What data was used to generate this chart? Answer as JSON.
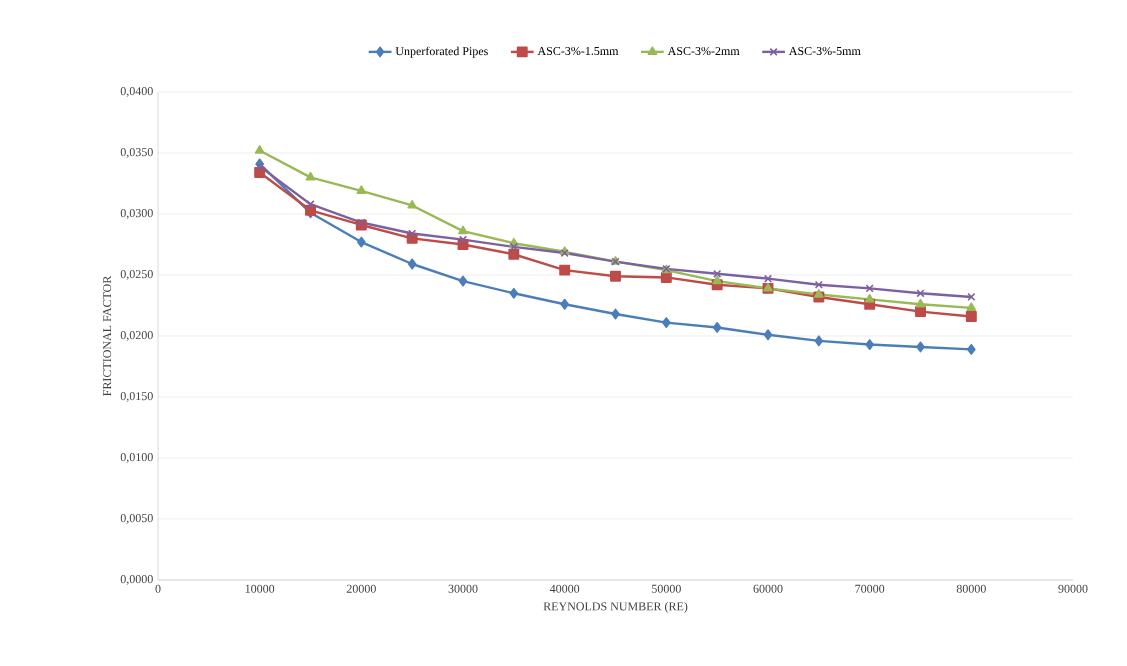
{
  "chart_data": {
    "type": "line",
    "xlabel": "REYNOLDS NUMBER (RE)",
    "ylabel": "FRICTIONAL FACTOR",
    "x": [
      10000,
      15000,
      20000,
      25000,
      30000,
      35000,
      40000,
      45000,
      50000,
      55000,
      60000,
      65000,
      70000,
      75000,
      80000
    ],
    "series": [
      {
        "name": "Unperforated Pipes",
        "color": "#4a7ebb",
        "marker": "diamond",
        "values": [
          0.0341,
          0.0301,
          0.0277,
          0.0259,
          0.0245,
          0.0235,
          0.0226,
          0.0218,
          0.0211,
          0.0207,
          0.0201,
          0.0196,
          0.0193,
          0.0191,
          0.0189
        ]
      },
      {
        "name": "ASC-3%-1.5mm",
        "color": "#be4b48",
        "marker": "square",
        "values": [
          0.0334,
          0.0303,
          0.0291,
          0.028,
          0.0275,
          0.0267,
          0.0254,
          0.0249,
          0.0248,
          0.0242,
          0.0239,
          0.0232,
          0.0226,
          0.022,
          0.0216
        ]
      },
      {
        "name": "ASC-3%-2mm",
        "color": "#98b954",
        "marker": "triangle",
        "values": [
          0.0352,
          0.033,
          0.0319,
          0.0307,
          0.0286,
          0.0276,
          0.0269,
          0.0261,
          0.0254,
          0.0245,
          0.0239,
          0.0234,
          0.023,
          0.0226,
          0.0223
        ]
      },
      {
        "name": "ASC-3%-5mm",
        "color": "#7d60a0",
        "marker": "cross",
        "values": [
          0.0339,
          0.0308,
          0.0293,
          0.0284,
          0.0279,
          0.0273,
          0.0268,
          0.0261,
          0.0255,
          0.0251,
          0.0247,
          0.0242,
          0.0239,
          0.0235,
          0.0232
        ]
      }
    ],
    "xlim": [
      0,
      90000
    ],
    "xticks": [
      0,
      10000,
      20000,
      30000,
      40000,
      50000,
      60000,
      70000,
      80000,
      90000
    ],
    "ylim": [
      0,
      0.04
    ],
    "yticks": [
      {
        "value": 0,
        "label": "0,0000"
      },
      {
        "value": 0.005,
        "label": "0,0050"
      },
      {
        "value": 0.01,
        "label": "0,0100"
      },
      {
        "value": 0.015,
        "label": "0,0150"
      },
      {
        "value": 0.02,
        "label": "0,0200"
      },
      {
        "value": 0.025,
        "label": "0,0250"
      },
      {
        "value": 0.03,
        "label": "0,0300"
      },
      {
        "value": 0.035,
        "label": "0,0350"
      },
      {
        "value": 0.04,
        "label": "0,0400"
      }
    ],
    "grid": "y",
    "legend": "top",
    "line_style": "solid"
  }
}
